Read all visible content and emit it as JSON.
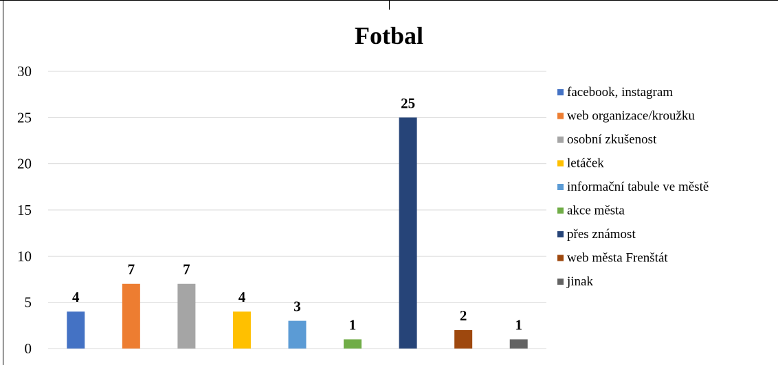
{
  "chart_data": {
    "type": "bar",
    "title": "Fotbal",
    "xlabel": "",
    "ylabel": "",
    "ylim": [
      0,
      30
    ],
    "yticks": [
      0,
      5,
      10,
      15,
      20,
      25,
      30
    ],
    "grid": true,
    "legend_position": "right",
    "categories": [
      "facebook, instagram",
      "web organizace/kroužku",
      "osobní zkušenost",
      "letáček",
      "informační tabule ve městě",
      "akce města",
      "přes známost",
      "web města Frenštát",
      "jinak"
    ],
    "values": [
      4,
      7,
      7,
      4,
      3,
      1,
      25,
      2,
      1
    ],
    "colors": [
      "#4472C4",
      "#ED7D31",
      "#A5A5A5",
      "#FFC000",
      "#5B9BD5",
      "#70AD47",
      "#264478",
      "#9E480E",
      "#636363"
    ],
    "data_labels": [
      "4",
      "7",
      "7",
      "4",
      "3",
      "1",
      "25",
      "2",
      "1"
    ]
  }
}
